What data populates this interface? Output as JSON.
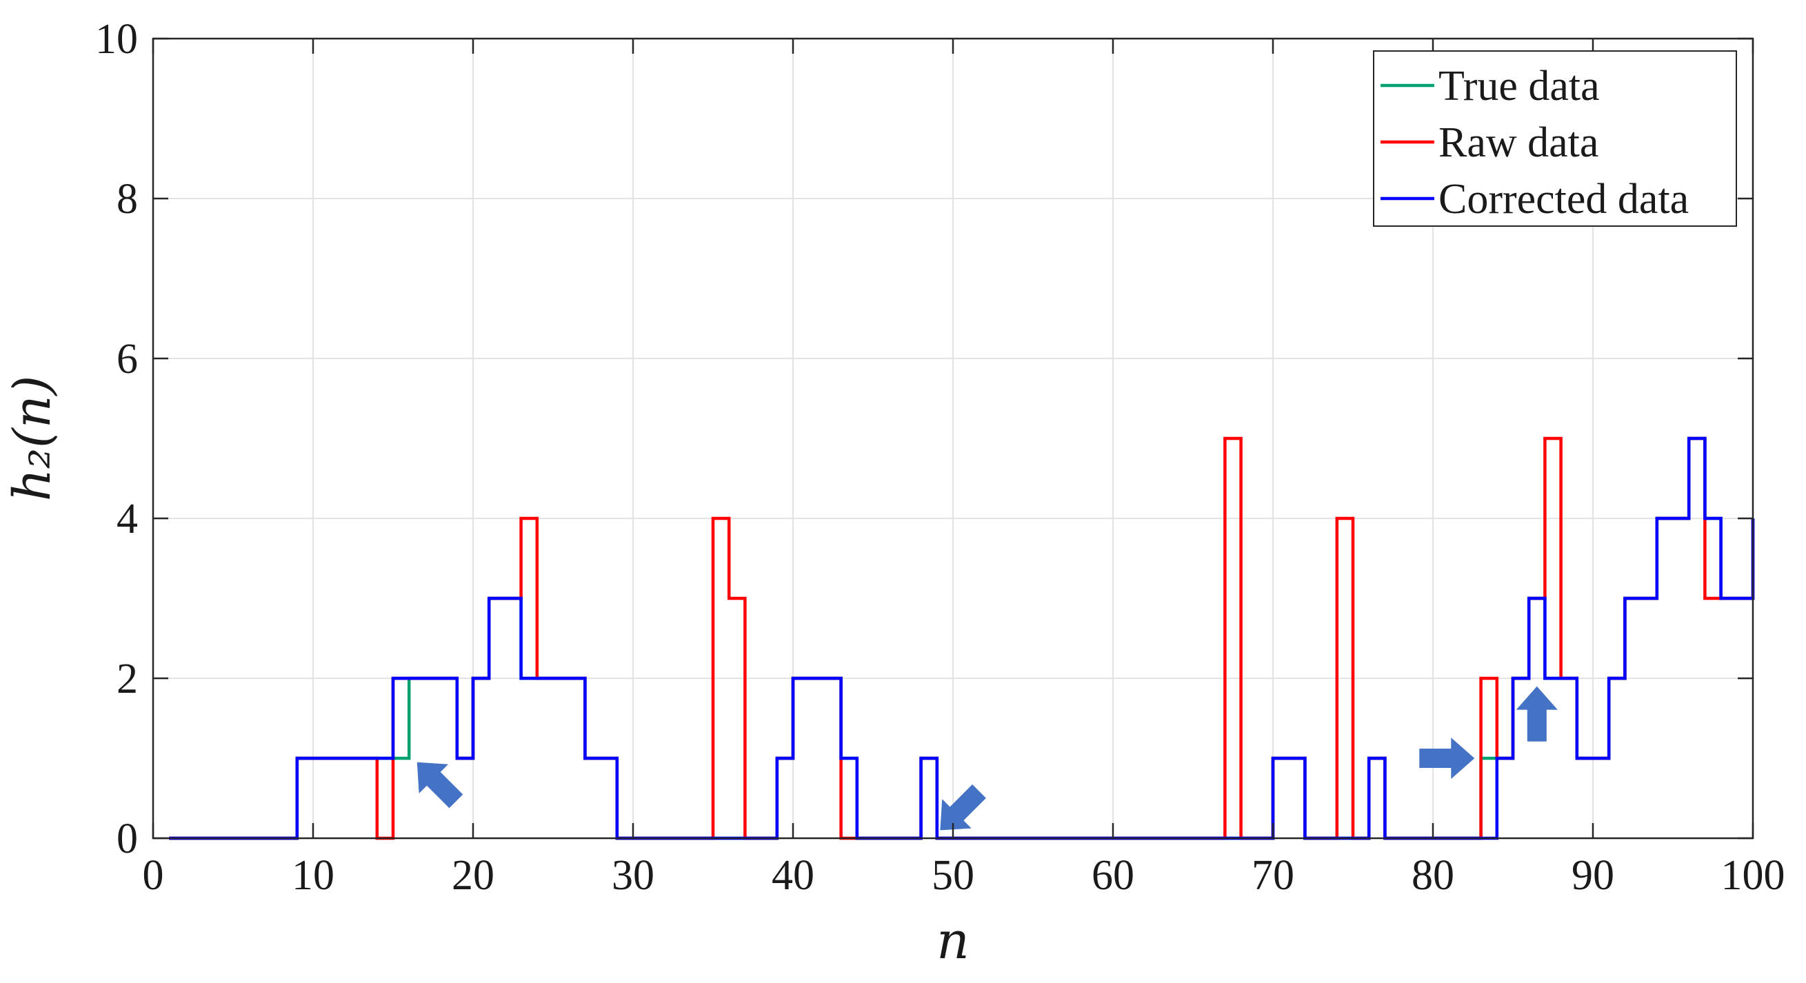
{
  "chart_data": {
    "type": "line",
    "step": true,
    "xlabel": "n",
    "ylabel": "h₂(n)",
    "xlim": [
      0,
      100
    ],
    "ylim": [
      0,
      10
    ],
    "xticks": [
      0,
      10,
      20,
      30,
      40,
      50,
      60,
      70,
      80,
      90,
      100
    ],
    "yticks": [
      0,
      2,
      4,
      6,
      8,
      10
    ],
    "grid": true,
    "legend_position": "top-right",
    "legend": [
      "True data",
      "Raw data",
      "Corrected data"
    ],
    "series": [
      {
        "name": "True data",
        "color": "#00a070",
        "x": [
          1,
          2,
          3,
          4,
          5,
          6,
          7,
          8,
          9,
          10,
          11,
          12,
          13,
          14,
          15,
          16,
          17,
          18,
          19,
          20,
          21,
          22,
          23,
          24,
          25,
          26,
          27,
          28,
          29,
          30,
          31,
          32,
          33,
          34,
          35,
          36,
          37,
          38,
          39,
          40,
          41,
          42,
          43,
          44,
          45,
          46,
          47,
          48,
          49,
          50,
          51,
          52,
          53,
          54,
          55,
          56,
          57,
          58,
          59,
          60,
          61,
          62,
          63,
          64,
          65,
          66,
          67,
          68,
          69,
          70,
          71,
          72,
          73,
          74,
          75,
          76,
          77,
          78,
          79,
          80,
          81,
          82,
          83,
          84,
          85,
          86,
          87,
          88,
          89,
          90,
          91,
          92,
          93,
          94,
          95,
          96,
          97,
          98,
          99,
          100
        ],
        "y": [
          0,
          0,
          0,
          0,
          0,
          0,
          0,
          0,
          1,
          1,
          1,
          1,
          1,
          1,
          1,
          2,
          2,
          2,
          1,
          2,
          3,
          3,
          2,
          2,
          2,
          2,
          1,
          1,
          0,
          0,
          0,
          0,
          0,
          0,
          0,
          0,
          0,
          0,
          1,
          2,
          2,
          2,
          1,
          0,
          0,
          0,
          0,
          1,
          0,
          0,
          0,
          0,
          0,
          0,
          0,
          0,
          0,
          0,
          0,
          0,
          0,
          0,
          0,
          0,
          0,
          0,
          0,
          0,
          0,
          1,
          1,
          0,
          0,
          0,
          0,
          1,
          0,
          0,
          0,
          0,
          0,
          0,
          1,
          1,
          2,
          3,
          2,
          2,
          1,
          1,
          2,
          3,
          3,
          4,
          4,
          5,
          4,
          3,
          3,
          4
        ]
      },
      {
        "name": "Raw data",
        "color": "#ff0000",
        "x": [
          1,
          2,
          3,
          4,
          5,
          6,
          7,
          8,
          9,
          10,
          11,
          12,
          13,
          14,
          15,
          16,
          17,
          18,
          19,
          20,
          21,
          22,
          23,
          24,
          25,
          26,
          27,
          28,
          29,
          30,
          31,
          32,
          33,
          34,
          35,
          36,
          37,
          38,
          39,
          40,
          41,
          42,
          43,
          44,
          45,
          46,
          47,
          48,
          49,
          50,
          51,
          52,
          53,
          54,
          55,
          56,
          57,
          58,
          59,
          60,
          61,
          62,
          63,
          64,
          65,
          66,
          67,
          68,
          69,
          70,
          71,
          72,
          73,
          74,
          75,
          76,
          77,
          78,
          79,
          80,
          81,
          82,
          83,
          84,
          85,
          86,
          87,
          88,
          89,
          90,
          91,
          92,
          93,
          94,
          95,
          96,
          97,
          98,
          99,
          100
        ],
        "y": [
          0,
          0,
          0,
          0,
          0,
          0,
          0,
          0,
          1,
          1,
          1,
          1,
          1,
          0,
          2,
          2,
          2,
          2,
          1,
          2,
          3,
          3,
          4,
          2,
          2,
          2,
          1,
          1,
          0,
          0,
          0,
          0,
          0,
          0,
          4,
          3,
          0,
          0,
          1,
          2,
          2,
          2,
          0,
          0,
          0,
          0,
          0,
          1,
          0,
          0,
          0,
          0,
          0,
          0,
          0,
          0,
          0,
          0,
          0,
          0,
          0,
          0,
          0,
          0,
          0,
          0,
          5,
          0,
          0,
          1,
          1,
          0,
          0,
          4,
          0,
          1,
          0,
          0,
          0,
          0,
          0,
          0,
          2,
          1,
          2,
          3,
          5,
          2,
          1,
          1,
          2,
          3,
          3,
          4,
          4,
          5,
          3,
          3,
          3,
          4
        ]
      },
      {
        "name": "Corrected data",
        "color": "#0000ff",
        "x": [
          1,
          2,
          3,
          4,
          5,
          6,
          7,
          8,
          9,
          10,
          11,
          12,
          13,
          14,
          15,
          16,
          17,
          18,
          19,
          20,
          21,
          22,
          23,
          24,
          25,
          26,
          27,
          28,
          29,
          30,
          31,
          32,
          33,
          34,
          35,
          36,
          37,
          38,
          39,
          40,
          41,
          42,
          43,
          44,
          45,
          46,
          47,
          48,
          49,
          50,
          51,
          52,
          53,
          54,
          55,
          56,
          57,
          58,
          59,
          60,
          61,
          62,
          63,
          64,
          65,
          66,
          67,
          68,
          69,
          70,
          71,
          72,
          73,
          74,
          75,
          76,
          77,
          78,
          79,
          80,
          81,
          82,
          83,
          84,
          85,
          86,
          87,
          88,
          89,
          90,
          91,
          92,
          93,
          94,
          95,
          96,
          97,
          98,
          99,
          100
        ],
        "y": [
          0,
          0,
          0,
          0,
          0,
          0,
          0,
          0,
          1,
          1,
          1,
          1,
          1,
          1,
          2,
          2,
          2,
          2,
          1,
          2,
          3,
          3,
          2,
          2,
          2,
          2,
          1,
          1,
          0,
          0,
          0,
          0,
          0,
          0,
          0,
          0,
          0,
          0,
          1,
          2,
          2,
          2,
          1,
          0,
          0,
          0,
          0,
          1,
          0,
          0,
          0,
          0,
          0,
          0,
          0,
          0,
          0,
          0,
          0,
          0,
          0,
          0,
          0,
          0,
          0,
          0,
          0,
          0,
          0,
          1,
          1,
          0,
          0,
          0,
          0,
          1,
          0,
          0,
          0,
          0,
          0,
          0,
          0,
          1,
          2,
          3,
          2,
          2,
          1,
          1,
          2,
          3,
          3,
          4,
          4,
          5,
          4,
          3,
          3,
          4
        ]
      }
    ],
    "annotations": [
      {
        "type": "arrow",
        "x": 16.5,
        "y": 0.95,
        "direction": "up-left",
        "color": "#4472c4"
      },
      {
        "type": "arrow",
        "x": 49.2,
        "y": 0.1,
        "direction": "down-left",
        "color": "#4472c4"
      },
      {
        "type": "arrow",
        "x": 82.6,
        "y": 1.0,
        "direction": "right",
        "color": "#4472c4"
      },
      {
        "type": "arrow",
        "x": 86.5,
        "y": 1.9,
        "direction": "up",
        "color": "#4472c4"
      }
    ]
  }
}
